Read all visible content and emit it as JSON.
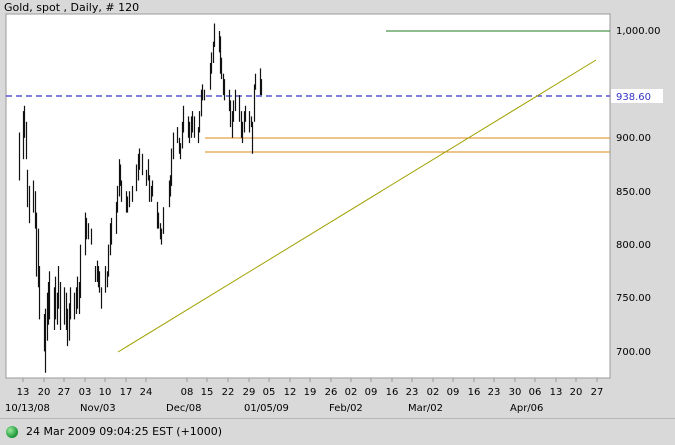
{
  "title": "Gold, spot , Daily, # 120",
  "status": {
    "text": "24 Mar 2009 09:04:25  EST (+1000)"
  },
  "chart_data": {
    "type": "ohlc",
    "title": "Gold, spot , Daily, # 120",
    "y_ticks": [
      "1,000.00",
      "938.60",
      "900.00",
      "850.00",
      "800.00",
      "750.00",
      "700.00"
    ],
    "ylim": [
      675,
      1012
    ],
    "grid": false,
    "x_day_labels": [
      "13",
      "20",
      "27",
      "03",
      "10",
      "17",
      "24",
      "08",
      "15",
      "22",
      "29",
      "05",
      "12",
      "19",
      "26",
      "02",
      "09",
      "16",
      "23",
      "02",
      "09",
      "16",
      "23",
      "30",
      "06",
      "13",
      "20",
      "27"
    ],
    "x_month_labels": [
      "10/13/08",
      "Nov/03",
      "Dec/08",
      "01/05/09",
      "Feb/02",
      "Mar/02",
      "Apr/06"
    ],
    "reference_lines": [
      {
        "name": "resistance",
        "value": 1002,
        "color": "#1f7a1f"
      },
      {
        "name": "current",
        "value": 938.6,
        "color": "#3535c8",
        "dashed": true,
        "label": "938.60"
      },
      {
        "name": "support-upper",
        "value": 900,
        "color": "#d88a1a"
      },
      {
        "name": "support-lower",
        "value": 887,
        "color": "#d88a1a"
      }
    ],
    "trendline": {
      "from": {
        "x": "2008-11-13",
        "y": 700
      },
      "to": {
        "x": "2009-03-30",
        "y": 975
      },
      "color": "#a0a000"
    },
    "bars": [
      {
        "x": "2008-10-10",
        "h": 905,
        "l": 860
      },
      {
        "x": "2008-10-13",
        "h": 925,
        "l": 880
      },
      {
        "x": "2008-10-14",
        "h": 930,
        "l": 900
      },
      {
        "x": "2008-10-15",
        "h": 915,
        "l": 880
      },
      {
        "x": "2008-10-16",
        "h": 870,
        "l": 835
      },
      {
        "x": "2008-10-17",
        "h": 855,
        "l": 820
      },
      {
        "x": "2008-10-20",
        "h": 860,
        "l": 830
      },
      {
        "x": "2008-10-21",
        "h": 850,
        "l": 815
      },
      {
        "x": "2008-10-22",
        "h": 830,
        "l": 770
      },
      {
        "x": "2008-10-23",
        "h": 815,
        "l": 760
      },
      {
        "x": "2008-10-24",
        "h": 780,
        "l": 730
      },
      {
        "x": "2008-10-27",
        "h": 735,
        "l": 700
      },
      {
        "x": "2008-10-28",
        "h": 740,
        "l": 680
      },
      {
        "x": "2008-10-29",
        "h": 755,
        "l": 710
      },
      {
        "x": "2008-10-30",
        "h": 765,
        "l": 725
      },
      {
        "x": "2008-10-31",
        "h": 775,
        "l": 730
      },
      {
        "x": "2008-11-03",
        "h": 760,
        "l": 720
      },
      {
        "x": "2008-11-04",
        "h": 770,
        "l": 730
      },
      {
        "x": "2008-11-05",
        "h": 755,
        "l": 725
      },
      {
        "x": "2008-11-06",
        "h": 780,
        "l": 740
      },
      {
        "x": "2008-11-07",
        "h": 765,
        "l": 720
      },
      {
        "x": "2008-11-10",
        "h": 760,
        "l": 725
      },
      {
        "x": "2008-11-11",
        "h": 755,
        "l": 720
      },
      {
        "x": "2008-11-12",
        "h": 740,
        "l": 705
      },
      {
        "x": "2008-11-13",
        "h": 745,
        "l": 710
      },
      {
        "x": "2008-11-14",
        "h": 760,
        "l": 730
      },
      {
        "x": "2008-11-17",
        "h": 755,
        "l": 730
      },
      {
        "x": "2008-11-18",
        "h": 760,
        "l": 735
      },
      {
        "x": "2008-11-19",
        "h": 770,
        "l": 740
      },
      {
        "x": "2008-11-20",
        "h": 765,
        "l": 735
      },
      {
        "x": "2008-11-21",
        "h": 800,
        "l": 750
      },
      {
        "x": "2008-11-24",
        "h": 830,
        "l": 790
      },
      {
        "x": "2008-11-25",
        "h": 825,
        "l": 805
      },
      {
        "x": "2008-11-26",
        "h": 820,
        "l": 805
      },
      {
        "x": "2008-11-28",
        "h": 815,
        "l": 800
      },
      {
        "x": "2008-12-01",
        "h": 780,
        "l": 765
      },
      {
        "x": "2008-12-02",
        "h": 785,
        "l": 765
      },
      {
        "x": "2008-12-03",
        "h": 780,
        "l": 760
      },
      {
        "x": "2008-12-04",
        "h": 775,
        "l": 755
      },
      {
        "x": "2008-12-05",
        "h": 760,
        "l": 740
      },
      {
        "x": "2008-12-08",
        "h": 780,
        "l": 755
      },
      {
        "x": "2008-12-09",
        "h": 775,
        "l": 760
      },
      {
        "x": "2008-12-10",
        "h": 800,
        "l": 770
      },
      {
        "x": "2008-12-11",
        "h": 820,
        "l": 790
      },
      {
        "x": "2008-12-12",
        "h": 825,
        "l": 800
      },
      {
        "x": "2008-12-15",
        "h": 840,
        "l": 810
      },
      {
        "x": "2008-12-16",
        "h": 855,
        "l": 830
      },
      {
        "x": "2008-12-17",
        "h": 880,
        "l": 845
      },
      {
        "x": "2008-12-18",
        "h": 875,
        "l": 855
      },
      {
        "x": "2008-12-19",
        "h": 860,
        "l": 840
      },
      {
        "x": "2008-12-22",
        "h": 850,
        "l": 830
      },
      {
        "x": "2008-12-23",
        "h": 845,
        "l": 830
      },
      {
        "x": "2008-12-24",
        "h": 850,
        "l": 835
      },
      {
        "x": "2008-12-26",
        "h": 855,
        "l": 840
      },
      {
        "x": "2008-12-29",
        "h": 875,
        "l": 850
      },
      {
        "x": "2008-12-30",
        "h": 885,
        "l": 860
      },
      {
        "x": "2008-12-31",
        "h": 890,
        "l": 870
      },
      {
        "x": "2009-01-02",
        "h": 885,
        "l": 865
      },
      {
        "x": "2009-01-05",
        "h": 870,
        "l": 855
      },
      {
        "x": "2009-01-06",
        "h": 880,
        "l": 860
      },
      {
        "x": "2009-01-07",
        "h": 865,
        "l": 840
      },
      {
        "x": "2009-01-08",
        "h": 855,
        "l": 840
      },
      {
        "x": "2009-01-09",
        "h": 860,
        "l": 845
      },
      {
        "x": "2009-01-12",
        "h": 840,
        "l": 815
      },
      {
        "x": "2009-01-13",
        "h": 830,
        "l": 815
      },
      {
        "x": "2009-01-14",
        "h": 820,
        "l": 805
      },
      {
        "x": "2009-01-15",
        "h": 815,
        "l": 800
      },
      {
        "x": "2009-01-16",
        "h": 835,
        "l": 810
      },
      {
        "x": "2009-01-20",
        "h": 860,
        "l": 835
      },
      {
        "x": "2009-01-21",
        "h": 865,
        "l": 845
      },
      {
        "x": "2009-01-22",
        "h": 890,
        "l": 855
      },
      {
        "x": "2009-01-23",
        "h": 905,
        "l": 880
      },
      {
        "x": "2009-01-26",
        "h": 910,
        "l": 895
      },
      {
        "x": "2009-01-27",
        "h": 900,
        "l": 885
      },
      {
        "x": "2009-01-28",
        "h": 895,
        "l": 880
      },
      {
        "x": "2009-01-29",
        "h": 915,
        "l": 890
      },
      {
        "x": "2009-01-30",
        "h": 930,
        "l": 905
      },
      {
        "x": "2009-02-02",
        "h": 920,
        "l": 900
      },
      {
        "x": "2009-02-03",
        "h": 915,
        "l": 895
      },
      {
        "x": "2009-02-04",
        "h": 920,
        "l": 900
      },
      {
        "x": "2009-02-05",
        "h": 925,
        "l": 905
      },
      {
        "x": "2009-02-06",
        "h": 920,
        "l": 900
      },
      {
        "x": "2009-02-09",
        "h": 910,
        "l": 895
      },
      {
        "x": "2009-02-10",
        "h": 925,
        "l": 905
      },
      {
        "x": "2009-02-11",
        "h": 945,
        "l": 920
      },
      {
        "x": "2009-02-12",
        "h": 950,
        "l": 935
      },
      {
        "x": "2009-02-13",
        "h": 945,
        "l": 935
      },
      {
        "x": "2009-02-17",
        "h": 970,
        "l": 945
      },
      {
        "x": "2009-02-18",
        "h": 980,
        "l": 960
      },
      {
        "x": "2009-02-19",
        "h": 990,
        "l": 970
      },
      {
        "x": "2009-02-20",
        "h": 1007,
        "l": 985
      },
      {
        "x": "2009-02-23",
        "h": 1000,
        "l": 980
      },
      {
        "x": "2009-02-24",
        "h": 995,
        "l": 960
      },
      {
        "x": "2009-02-25",
        "h": 975,
        "l": 955
      },
      {
        "x": "2009-02-26",
        "h": 960,
        "l": 940
      },
      {
        "x": "2009-02-27",
        "h": 955,
        "l": 935
      },
      {
        "x": "2009-03-02",
        "h": 945,
        "l": 925
      },
      {
        "x": "2009-03-03",
        "h": 935,
        "l": 910
      },
      {
        "x": "2009-03-04",
        "h": 925,
        "l": 900
      },
      {
        "x": "2009-03-05",
        "h": 935,
        "l": 915
      },
      {
        "x": "2009-03-06",
        "h": 945,
        "l": 925
      },
      {
        "x": "2009-03-09",
        "h": 940,
        "l": 915
      },
      {
        "x": "2009-03-10",
        "h": 925,
        "l": 900
      },
      {
        "x": "2009-03-11",
        "h": 915,
        "l": 895
      },
      {
        "x": "2009-03-12",
        "h": 925,
        "l": 905
      },
      {
        "x": "2009-03-13",
        "h": 930,
        "l": 915
      },
      {
        "x": "2009-03-16",
        "h": 925,
        "l": 905
      },
      {
        "x": "2009-03-17",
        "h": 920,
        "l": 910
      },
      {
        "x": "2009-03-18",
        "h": 915,
        "l": 885
      },
      {
        "x": "2009-03-19",
        "h": 950,
        "l": 915
      },
      {
        "x": "2009-03-20",
        "h": 960,
        "l": 945
      },
      {
        "x": "2009-03-23",
        "h": 965,
        "l": 940
      },
      {
        "x": "2009-03-24",
        "h": 955,
        "l": 940
      }
    ]
  }
}
